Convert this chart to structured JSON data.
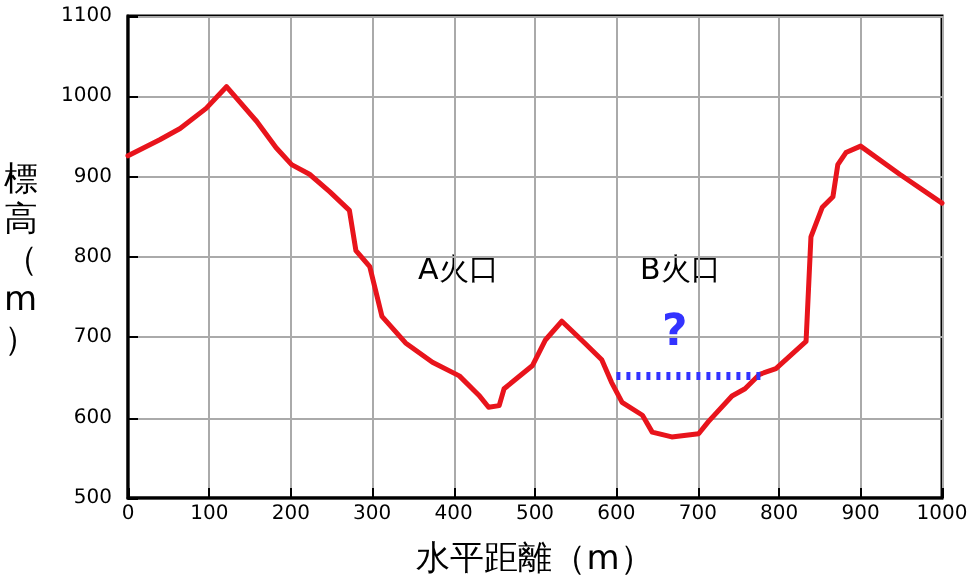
{
  "chart_data": {
    "type": "line",
    "xlabel": "水平距離（m）",
    "ylabel": "標高（m）",
    "xlim": [
      0,
      1000
    ],
    "xticks": [
      0,
      100,
      200,
      300,
      400,
      500,
      600,
      700,
      800,
      900,
      1000
    ],
    "ylim": [
      500,
      1100
    ],
    "yticks": [
      500,
      600,
      700,
      800,
      900,
      1000,
      1100
    ],
    "grid": true,
    "marker": "none",
    "series": [
      {
        "color": "#e8141c",
        "line_style": "solid",
        "x": [
          0,
          39,
          64,
          96,
          121,
          158,
          182,
          201,
          223,
          248,
          272,
          280,
          297,
          312,
          341,
          374,
          407,
          431,
          443,
          456,
          462,
          497,
          513,
          533,
          561,
          582,
          594,
          607,
          632,
          644,
          668,
          701,
          713,
          742,
          758,
          776,
          796,
          833,
          839,
          853,
          866,
          872,
          882,
          900,
          948,
          1000
        ],
        "values": [
          926,
          946,
          960,
          985,
          1012,
          969,
          936,
          915,
          903,
          881,
          858,
          808,
          788,
          726,
          693,
          669,
          652,
          628,
          613,
          615,
          636,
          665,
          697,
          720,
          693,
          672,
          644,
          619,
          603,
          582,
          576,
          580,
          595,
          627,
          636,
          654,
          661,
          695,
          825,
          862,
          875,
          915,
          930,
          938,
          903,
          867
        ]
      },
      {
        "color": "#3333ff",
        "line_style": "dotted",
        "x": [
          600,
          777
        ],
        "values": [
          652,
          652
        ]
      }
    ],
    "annotations": [
      "A火口",
      "B火口",
      "?"
    ]
  }
}
